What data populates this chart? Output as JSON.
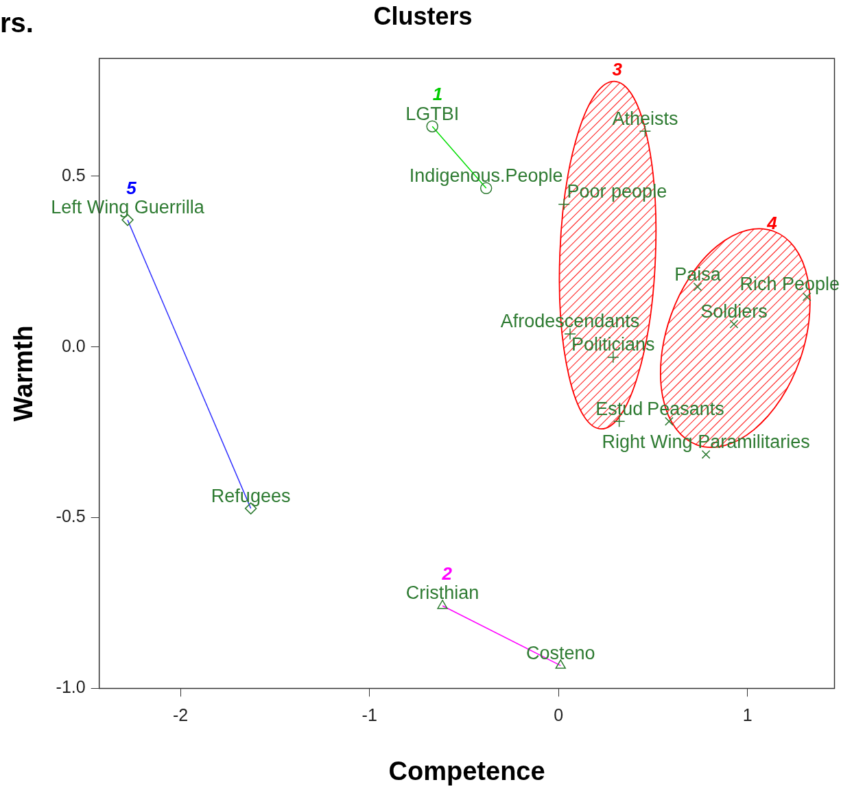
{
  "chart_data": {
    "type": "scatter",
    "title": "Clusters",
    "xlabel": "Competence",
    "ylabel": "Warmth",
    "xlim": [
      -2.43,
      1.46
    ],
    "xticks": [
      -2,
      -1,
      0,
      1
    ],
    "ylim": [
      -1.0,
      0.845
    ],
    "yticks": [
      {
        "value": -1,
        "label": "-1.0"
      },
      {
        "value": -0.5,
        "label": "-0.5"
      },
      {
        "value": 0,
        "label": "0.0"
      },
      {
        "value": 0.5,
        "label": "0.5"
      }
    ],
    "grid": false,
    "legend": false,
    "series": [
      {
        "color": "#2e7b32",
        "marker": "circle",
        "x": [
          -0.668,
          -0.383
        ],
        "values": [
          0.646,
          0.465
        ],
        "value_labels": [
          "LGTBI",
          "Indigenous.People"
        ]
      },
      {
        "color": "#2e7b32",
        "marker": "triangle",
        "x": [
          -0.614,
          0.011
        ],
        "values": [
          -0.758,
          -0.933
        ],
        "value_labels": [
          "Cristhian",
          "Costeno"
        ]
      },
      {
        "color": "#2e7b32",
        "marker": "cross",
        "x": [
          0.458,
          0.029,
          0.061,
          0.289,
          0.321
        ],
        "values": [
          0.632,
          0.418,
          0.038,
          -0.03,
          -0.218
        ],
        "value_labels": [
          "Atheists",
          "Poor people",
          "Afrodescendants",
          "Politicians",
          "Estud"
        ]
      },
      {
        "color": "#2e7b32",
        "marker": "x",
        "x": [
          0.736,
          1.314,
          0.928,
          0.585,
          0.78
        ],
        "values": [
          0.176,
          0.147,
          0.067,
          -0.218,
          -0.315
        ],
        "value_labels": [
          "Paisa",
          "Rich People",
          "Soldiers",
          "Peasants",
          "Right Wing Paramilitaries"
        ]
      },
      {
        "color": "#2e7b32",
        "marker": "diamond",
        "x": [
          -2.28,
          -1.628
        ],
        "values": [
          0.372,
          -0.473
        ],
        "value_labels": [
          "Left Wing Guerrilla",
          "Refugees"
        ]
      },
      {
        "type": "line",
        "color": "#00dd00",
        "marker": "none",
        "x": [
          -0.668,
          -0.383
        ],
        "values": [
          0.646,
          0.465
        ]
      },
      {
        "type": "line",
        "color": "#ff00ff",
        "marker": "none",
        "x": [
          -0.614,
          0.011
        ],
        "values": [
          -0.758,
          -0.933
        ]
      },
      {
        "type": "line",
        "color": "#3333ff",
        "marker": "none",
        "x": [
          -2.28,
          -1.628
        ],
        "values": [
          0.372,
          -0.473
        ]
      }
    ],
    "annotations": [
      "rs.",
      "1",
      "2",
      "3",
      "4",
      "5"
    ]
  }
}
